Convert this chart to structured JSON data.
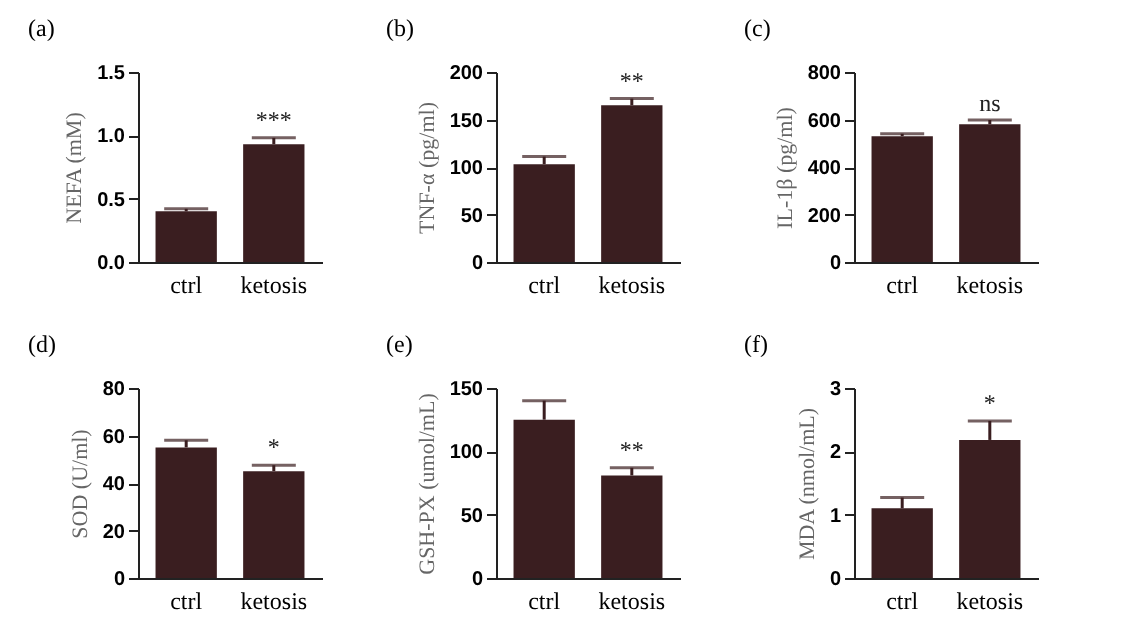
{
  "chart_data": [
    {
      "type": "bar",
      "title": "(a)",
      "ylabel": "NEFA (mM)",
      "categories": [
        "ctrl",
        "ketosis"
      ],
      "values": [
        0.4,
        0.93
      ],
      "errors": [
        0.02,
        0.05
      ],
      "color": "#3a1e20",
      "ylim": [
        0,
        1.5
      ],
      "yticks": [
        {
          "value": 0,
          "label": "0.0"
        },
        0.5,
        {
          "value": 1,
          "label": "1.0"
        },
        1.5
      ],
      "annotations": [
        {
          "text": "***",
          "x": "ketosis",
          "y": 0.98
        }
      ]
    },
    {
      "type": "bar",
      "title": "(b)",
      "ylabel": "TNF-α (pg/ml)",
      "categories": [
        "ctrl",
        "ketosis"
      ],
      "values": [
        103,
        165
      ],
      "errors": [
        8,
        7
      ],
      "color": "#3a1e20",
      "ylim": [
        0,
        200
      ],
      "yticks": [
        0,
        50,
        100,
        150,
        200
      ],
      "annotations": [
        {
          "text": "**",
          "x": "ketosis",
          "y": 172
        }
      ]
    },
    {
      "type": "bar",
      "title": "(c)",
      "ylabel": "IL-1β (pg/ml)",
      "categories": [
        "ctrl",
        "ketosis"
      ],
      "values": [
        530,
        580
      ],
      "errors": [
        10,
        18
      ],
      "color": "#3a1e20",
      "ylim": [
        0,
        800
      ],
      "yticks": [
        0,
        200,
        400,
        600,
        800
      ],
      "annotations": [
        {
          "text": "ns",
          "x": "ketosis",
          "y": 593
        }
      ]
    },
    {
      "type": "bar",
      "title": "(d)",
      "ylabel": "SOD (U/ml)",
      "categories": [
        "ctrl",
        "ketosis"
      ],
      "values": [
        55,
        45
      ],
      "errors": [
        3,
        2.5
      ],
      "color": "#3a1e20",
      "ylim": [
        0,
        80
      ],
      "yticks": [
        0,
        20,
        40,
        60,
        80
      ],
      "annotations": [
        {
          "text": "*",
          "x": "ketosis",
          "y": 47.5
        }
      ]
    },
    {
      "type": "bar",
      "title": "(e)",
      "ylabel": "GSH-PX (umol/mL)",
      "categories": [
        "ctrl",
        "ketosis"
      ],
      "values": [
        125,
        81
      ],
      "errors": [
        15,
        6
      ],
      "color": "#3a1e20",
      "ylim": [
        0,
        150
      ],
      "yticks": [
        0,
        50,
        100,
        150
      ],
      "annotations": [
        {
          "text": "**",
          "x": "ketosis",
          "y": 87
        }
      ]
    },
    {
      "type": "bar",
      "title": "(f)",
      "ylabel": "MDA (nmol/mL)",
      "categories": [
        "ctrl",
        "ketosis"
      ],
      "values": [
        1.1,
        2.18
      ],
      "errors": [
        0.17,
        0.3
      ],
      "color": "#3a1e20",
      "ylim": [
        0,
        3
      ],
      "yticks": [
        0,
        1,
        2,
        3
      ],
      "annotations": [
        {
          "text": "*",
          "x": "ketosis",
          "y": 2.48
        }
      ]
    }
  ]
}
